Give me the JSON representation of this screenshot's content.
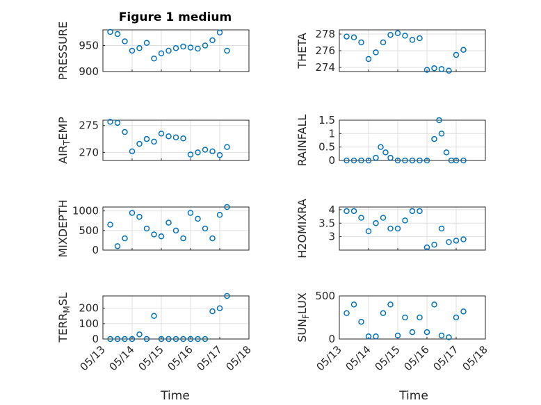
{
  "figure": {
    "title": "Figure 1 medium",
    "xlabel": "Time"
  },
  "colors": {
    "marker": "#0072BD",
    "axis": "#262626",
    "grid": "#DFDFDF",
    "background": "#FFFFFF"
  },
  "chart_data": [
    {
      "type": "scatter",
      "title": "Figure 1 medium",
      "ylabel": "PRESSURE",
      "xlim": [
        "05/13",
        "05/18"
      ],
      "ylim": [
        900,
        980
      ],
      "yticks": [
        900,
        950
      ],
      "grid": true,
      "x": [
        "05/13 06:00",
        "05/13 12:00",
        "05/13 18:00",
        "05/14 00:00",
        "05/14 06:00",
        "05/14 12:00",
        "05/14 18:00",
        "05/15 00:00",
        "05/15 06:00",
        "05/15 12:00",
        "05/15 18:00",
        "05/16 00:00",
        "05/16 06:00",
        "05/16 12:00",
        "05/16 18:00",
        "05/17 00:00",
        "05/17 06:00"
      ],
      "y": [
        976,
        972,
        958,
        940,
        945,
        955,
        925,
        935,
        940,
        945,
        948,
        946,
        944,
        950,
        960,
        975,
        940
      ]
    },
    {
      "type": "scatter",
      "ylabel": "THETA",
      "xlim": [
        "05/13",
        "05/18"
      ],
      "ylim": [
        273.5,
        278.5
      ],
      "yticks": [
        274,
        276,
        278
      ],
      "grid": true,
      "x": [
        "05/13 06:00",
        "05/13 12:00",
        "05/13 18:00",
        "05/14 00:00",
        "05/14 06:00",
        "05/14 12:00",
        "05/14 18:00",
        "05/15 00:00",
        "05/15 06:00",
        "05/15 12:00",
        "05/15 18:00",
        "05/16 00:00",
        "05/16 06:00",
        "05/16 12:00",
        "05/16 18:00",
        "05/17 00:00",
        "05/17 06:00"
      ],
      "y": [
        277.7,
        277.6,
        277.0,
        275.0,
        275.8,
        277.0,
        277.9,
        278.1,
        277.8,
        277.3,
        277.5,
        273.7,
        273.9,
        273.8,
        273.6,
        275.5,
        276.1
      ]
    },
    {
      "type": "scatter",
      "ylabel": "AIR_TEMP",
      "xlim": [
        "05/13",
        "05/18"
      ],
      "ylim": [
        268.5,
        276
      ],
      "yticks": [
        270,
        275
      ],
      "grid": true,
      "x": [
        "05/13 06:00",
        "05/13 12:00",
        "05/13 18:00",
        "05/14 00:00",
        "05/14 06:00",
        "05/14 12:00",
        "05/14 18:00",
        "05/15 00:00",
        "05/15 06:00",
        "05/15 12:00",
        "05/15 18:00",
        "05/16 00:00",
        "05/16 06:00",
        "05/16 12:00",
        "05/16 18:00",
        "05/17 00:00",
        "05/17 06:00"
      ],
      "y": [
        275.7,
        275.5,
        273.8,
        270.2,
        271.6,
        272.5,
        272.0,
        273.5,
        273.0,
        272.8,
        272.6,
        269.6,
        270.0,
        270.5,
        270.2,
        269.5,
        271.0
      ]
    },
    {
      "type": "scatter",
      "ylabel": "RAINFALL",
      "xlim": [
        "05/13",
        "05/18"
      ],
      "ylim": [
        0,
        1.5
      ],
      "yticks": [
        0,
        0.5,
        1,
        1.5
      ],
      "grid": true,
      "x": [
        "05/13 06:00",
        "05/13 12:00",
        "05/13 18:00",
        "05/14 00:00",
        "05/14 06:00",
        "05/14 10:00",
        "05/14 14:00",
        "05/14 18:00",
        "05/15 00:00",
        "05/15 06:00",
        "05/15 12:00",
        "05/15 18:00",
        "05/16 00:00",
        "05/16 06:00",
        "05/16 10:00",
        "05/16 12:00",
        "05/16 16:00",
        "05/16 20:00",
        "05/17 00:00",
        "05/17 06:00"
      ],
      "y": [
        0,
        0,
        0,
        0,
        0.1,
        0.5,
        0.3,
        0.1,
        0,
        0,
        0,
        0,
        0,
        0.8,
        1.5,
        1.0,
        0.3,
        0,
        0,
        0
      ]
    },
    {
      "type": "scatter",
      "ylabel": "MIXDEPTH",
      "xlim": [
        "05/13",
        "05/18"
      ],
      "ylim": [
        0,
        1100
      ],
      "yticks": [
        0,
        500,
        1000
      ],
      "grid": true,
      "x": [
        "05/13 06:00",
        "05/13 12:00",
        "05/13 18:00",
        "05/14 00:00",
        "05/14 06:00",
        "05/14 12:00",
        "05/14 18:00",
        "05/15 00:00",
        "05/15 06:00",
        "05/15 12:00",
        "05/15 18:00",
        "05/16 00:00",
        "05/16 06:00",
        "05/16 12:00",
        "05/16 18:00",
        "05/17 00:00",
        "05/17 06:00"
      ],
      "y": [
        650,
        100,
        300,
        950,
        850,
        550,
        400,
        350,
        700,
        500,
        300,
        950,
        800,
        550,
        300,
        900,
        1100
      ]
    },
    {
      "type": "scatter",
      "ylabel": "H2OMIXRA",
      "xlim": [
        "05/13",
        "05/18"
      ],
      "ylim": [
        2.5,
        4.1
      ],
      "yticks": [
        3,
        3.5,
        4
      ],
      "grid": true,
      "x": [
        "05/13 06:00",
        "05/13 12:00",
        "05/13 18:00",
        "05/14 00:00",
        "05/14 06:00",
        "05/14 12:00",
        "05/14 18:00",
        "05/15 00:00",
        "05/15 06:00",
        "05/15 12:00",
        "05/15 18:00",
        "05/16 00:00",
        "05/16 06:00",
        "05/16 12:00",
        "05/16 18:00",
        "05/17 00:00",
        "05/17 06:00"
      ],
      "y": [
        3.95,
        3.95,
        3.7,
        3.2,
        3.5,
        3.7,
        3.3,
        3.3,
        3.6,
        3.95,
        3.95,
        2.6,
        2.7,
        3.3,
        2.8,
        2.85,
        2.9
      ]
    },
    {
      "type": "scatter",
      "ylabel": "TERR_MSL",
      "xlim": [
        "05/13",
        "05/18"
      ],
      "ylim": [
        0,
        280
      ],
      "yticks": [
        0,
        100,
        200
      ],
      "grid": true,
      "x": [
        "05/13 06:00",
        "05/13 12:00",
        "05/13 18:00",
        "05/14 00:00",
        "05/14 06:00",
        "05/14 12:00",
        "05/14 18:00",
        "05/15 00:00",
        "05/15 06:00",
        "05/15 12:00",
        "05/15 18:00",
        "05/16 00:00",
        "05/16 06:00",
        "05/16 12:00",
        "05/16 18:00",
        "05/17 00:00",
        "05/17 06:00"
      ],
      "y": [
        0,
        0,
        0,
        0,
        30,
        0,
        150,
        0,
        0,
        0,
        0,
        0,
        0,
        0,
        180,
        200,
        280
      ]
    },
    {
      "type": "scatter",
      "ylabel": "SUN_FLUX",
      "xlim": [
        "05/13",
        "05/18"
      ],
      "ylim": [
        0,
        500
      ],
      "yticks": [
        0,
        500
      ],
      "grid": true,
      "x": [
        "05/13 06:00",
        "05/13 12:00",
        "05/13 18:00",
        "05/14 00:00",
        "05/14 06:00",
        "05/14 12:00",
        "05/14 18:00",
        "05/15 00:00",
        "05/15 06:00",
        "05/15 12:00",
        "05/15 18:00",
        "05/16 00:00",
        "05/16 06:00",
        "05/16 12:00",
        "05/16 18:00",
        "05/17 00:00",
        "05/17 06:00"
      ],
      "y": [
        300,
        400,
        200,
        30,
        30,
        300,
        400,
        40,
        250,
        80,
        250,
        80,
        400,
        40,
        20,
        250,
        320
      ]
    }
  ],
  "xticks": [
    "05/13",
    "05/14",
    "05/15",
    "05/16",
    "05/17",
    "05/18"
  ],
  "ylabel_parts": [
    {
      "main": "PRESSURE"
    },
    {
      "main": "THETA"
    },
    {
      "pre": "AIR",
      "sub": "T",
      "post": "EMP"
    },
    {
      "main": "RAINFALL"
    },
    {
      "main": "MIXDEPTH"
    },
    {
      "main": "H2OMIXRA"
    },
    {
      "pre": "TERR",
      "sub": "M",
      "post": "SL"
    },
    {
      "pre": "SUN",
      "sub": "F",
      "post": "LUX"
    }
  ]
}
